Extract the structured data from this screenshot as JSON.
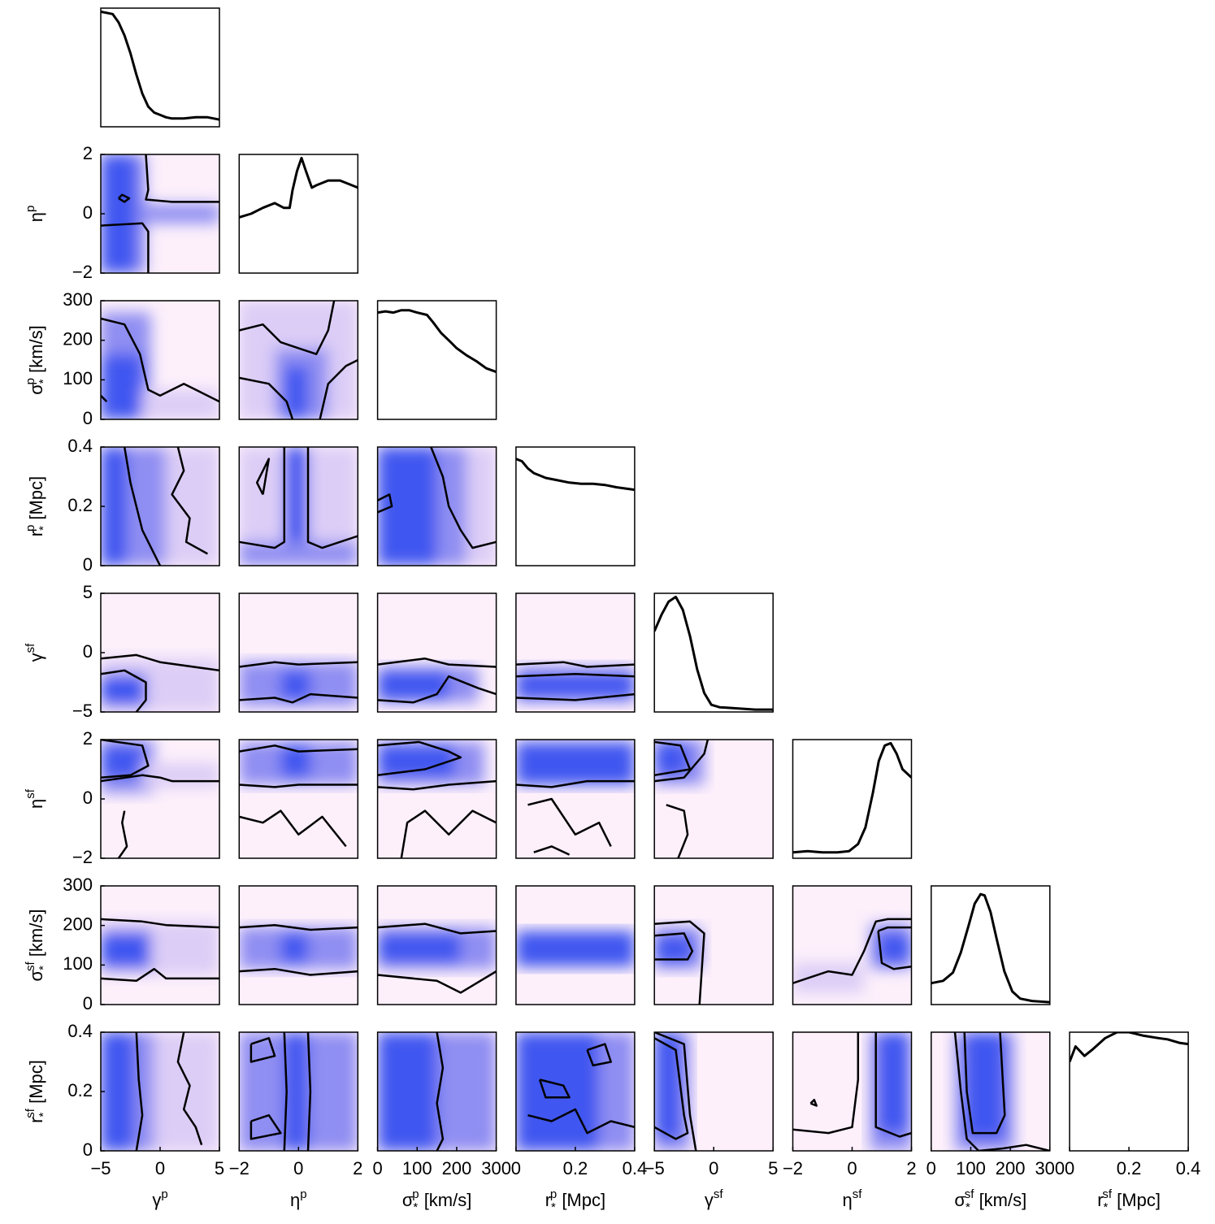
{
  "chart_data": {
    "type": "corner",
    "variables": [
      {
        "symbol": "γ",
        "sup": "p",
        "sub": "",
        "unit": "",
        "range": [
          -5,
          5
        ],
        "ticks": [
          -5,
          0,
          5
        ],
        "tick_labels": [
          "−5",
          "0",
          "5"
        ]
      },
      {
        "symbol": "η",
        "sup": "p",
        "sub": "",
        "unit": "",
        "range": [
          -2,
          2
        ],
        "ticks": [
          -2,
          0,
          2
        ],
        "tick_labels": [
          "−2",
          "0",
          "2"
        ]
      },
      {
        "symbol": "σ",
        "sup": "p",
        "sub": "*",
        "unit": "[km/s]",
        "range": [
          0,
          300
        ],
        "ticks": [
          0,
          100,
          200,
          300
        ],
        "tick_labels": [
          "0",
          "100",
          "200",
          "300"
        ]
      },
      {
        "symbol": "r",
        "sup": "p",
        "sub": "*",
        "unit": "[Mpc]",
        "range": [
          0,
          0.4
        ],
        "ticks": [
          0,
          0.2,
          0.4
        ],
        "tick_labels": [
          "0",
          "0.2",
          "0.4"
        ]
      },
      {
        "symbol": "γ",
        "sup": "sf",
        "sub": "",
        "unit": "",
        "range": [
          -5,
          5
        ],
        "ticks": [
          -5,
          0,
          5
        ],
        "tick_labels": [
          "−5",
          "0",
          "5"
        ]
      },
      {
        "symbol": "η",
        "sup": "sf",
        "sub": "",
        "unit": "",
        "range": [
          -2,
          2
        ],
        "ticks": [
          -2,
          0,
          2
        ],
        "tick_labels": [
          "−2",
          "0",
          "2"
        ]
      },
      {
        "symbol": "σ",
        "sup": "sf",
        "sub": "*",
        "unit": "[km/s]",
        "range": [
          0,
          300
        ],
        "ticks": [
          0,
          100,
          200,
          300
        ],
        "tick_labels": [
          "0",
          "100",
          "200",
          "300"
        ]
      },
      {
        "symbol": "r",
        "sup": "sf",
        "sub": "*",
        "unit": "[Mpc]",
        "range": [
          0,
          0.4
        ],
        "ticks": [
          0,
          0.2,
          0.4
        ],
        "tick_labels": [
          "0",
          "0.2",
          "0.4"
        ]
      }
    ],
    "marginals": [
      [
        [
          -5,
          0.97
        ],
        [
          -4.5,
          0.96
        ],
        [
          -4,
          0.95
        ],
        [
          -3.5,
          0.88
        ],
        [
          -3,
          0.77
        ],
        [
          -2.5,
          0.62
        ],
        [
          -2,
          0.44
        ],
        [
          -1.5,
          0.28
        ],
        [
          -1,
          0.17
        ],
        [
          -0.5,
          0.12
        ],
        [
          0,
          0.1
        ],
        [
          0.5,
          0.08
        ],
        [
          1,
          0.07
        ],
        [
          2,
          0.07
        ],
        [
          3,
          0.08
        ],
        [
          4,
          0.08
        ],
        [
          5,
          0.06
        ]
      ],
      [
        [
          -2,
          0.47
        ],
        [
          -1.6,
          0.5
        ],
        [
          -1.2,
          0.55
        ],
        [
          -0.8,
          0.59
        ],
        [
          -0.5,
          0.55
        ],
        [
          -0.3,
          0.55
        ],
        [
          -0.2,
          0.7
        ],
        [
          -0.05,
          0.86
        ],
        [
          0.1,
          0.97
        ],
        [
          0.25,
          0.86
        ],
        [
          0.45,
          0.72
        ],
        [
          0.6,
          0.74
        ],
        [
          1.0,
          0.78
        ],
        [
          1.4,
          0.78
        ],
        [
          1.7,
          0.75
        ],
        [
          2,
          0.72
        ]
      ],
      [
        [
          0,
          0.9
        ],
        [
          20,
          0.91
        ],
        [
          40,
          0.9
        ],
        [
          60,
          0.92
        ],
        [
          80,
          0.92
        ],
        [
          100,
          0.9
        ],
        [
          125,
          0.88
        ],
        [
          140,
          0.82
        ],
        [
          160,
          0.73
        ],
        [
          185,
          0.65
        ],
        [
          200,
          0.6
        ],
        [
          225,
          0.54
        ],
        [
          250,
          0.49
        ],
        [
          275,
          0.43
        ],
        [
          300,
          0.4
        ]
      ],
      [
        [
          0,
          0.9
        ],
        [
          0.02,
          0.88
        ],
        [
          0.04,
          0.82
        ],
        [
          0.06,
          0.78
        ],
        [
          0.08,
          0.76
        ],
        [
          0.1,
          0.74
        ],
        [
          0.14,
          0.72
        ],
        [
          0.18,
          0.7
        ],
        [
          0.22,
          0.69
        ],
        [
          0.26,
          0.69
        ],
        [
          0.3,
          0.68
        ],
        [
          0.34,
          0.66
        ],
        [
          0.37,
          0.65
        ],
        [
          0.4,
          0.64
        ]
      ],
      [
        [
          -5,
          0.68
        ],
        [
          -4.4,
          0.82
        ],
        [
          -3.8,
          0.93
        ],
        [
          -3.2,
          0.97
        ],
        [
          -2.6,
          0.86
        ],
        [
          -2.0,
          0.64
        ],
        [
          -1.4,
          0.36
        ],
        [
          -0.8,
          0.16
        ],
        [
          -0.2,
          0.06
        ],
        [
          0.5,
          0.04
        ],
        [
          2,
          0.03
        ],
        [
          3.5,
          0.02
        ],
        [
          5,
          0.02
        ]
      ],
      [
        [
          -2,
          0.05
        ],
        [
          -1.5,
          0.06
        ],
        [
          -1.0,
          0.05
        ],
        [
          -0.5,
          0.05
        ],
        [
          -0.1,
          0.06
        ],
        [
          0.2,
          0.12
        ],
        [
          0.45,
          0.26
        ],
        [
          0.7,
          0.55
        ],
        [
          0.9,
          0.82
        ],
        [
          1.1,
          0.95
        ],
        [
          1.3,
          0.97
        ],
        [
          1.5,
          0.88
        ],
        [
          1.7,
          0.75
        ],
        [
          2,
          0.68
        ]
      ],
      [
        [
          0,
          0.18
        ],
        [
          30,
          0.2
        ],
        [
          55,
          0.27
        ],
        [
          75,
          0.44
        ],
        [
          95,
          0.67
        ],
        [
          110,
          0.85
        ],
        [
          125,
          0.93
        ],
        [
          135,
          0.92
        ],
        [
          150,
          0.78
        ],
        [
          165,
          0.56
        ],
        [
          185,
          0.28
        ],
        [
          205,
          0.11
        ],
        [
          225,
          0.05
        ],
        [
          255,
          0.03
        ],
        [
          300,
          0.02
        ]
      ],
      [
        [
          0,
          0.75
        ],
        [
          0.02,
          0.88
        ],
        [
          0.05,
          0.8
        ],
        [
          0.08,
          0.86
        ],
        [
          0.12,
          0.95
        ],
        [
          0.16,
          1.0
        ],
        [
          0.2,
          1.0
        ],
        [
          0.25,
          0.97
        ],
        [
          0.3,
          0.95
        ],
        [
          0.33,
          0.94
        ],
        [
          0.37,
          0.91
        ],
        [
          0.4,
          0.9
        ]
      ]
    ],
    "colormap": [
      "#fdf0fb",
      "#3f56f0"
    ],
    "contours": "68% and 95% credible levels",
    "grid": false,
    "legend": "none"
  }
}
